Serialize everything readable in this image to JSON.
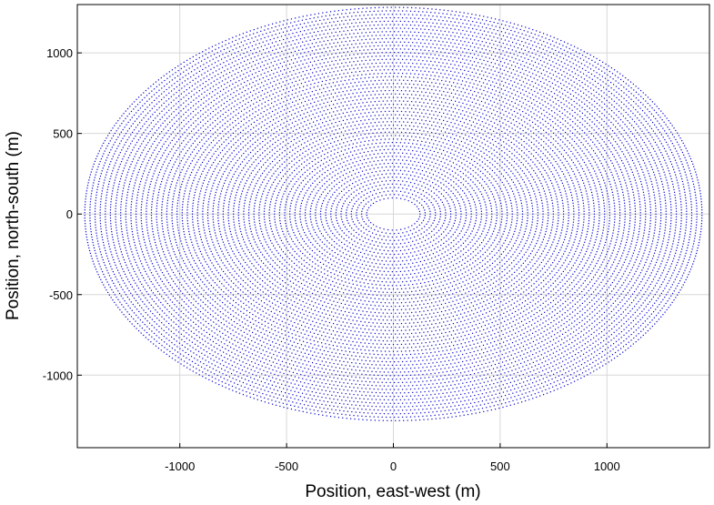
{
  "chart_data": {
    "type": "scatter",
    "title": "",
    "xlabel": "Position, east-west (m)",
    "ylabel": "Position, north-south (m)",
    "xlim": [
      -1480,
      1480
    ],
    "ylim": [
      -1450,
      1300
    ],
    "xticks": [
      -1000,
      -500,
      0,
      500,
      1000
    ],
    "yticks": [
      -1000,
      -500,
      0,
      500,
      1000
    ],
    "xtick_labels": [
      "-1000",
      "-500",
      "0",
      "500",
      "1000"
    ],
    "ytick_labels": [
      "-1000",
      "-500",
      "0",
      "500",
      "1000"
    ],
    "grid": true,
    "marker_color": "#0000cc",
    "field_shape": "ellipse",
    "field_center": [
      0,
      0
    ],
    "field_semi_axis_x": 1460,
    "field_semi_axis_y": 1300,
    "field_bottom_extent": -1450,
    "inner_hole_semi_axis_x": 125,
    "inner_hole_semi_axis_y": 100,
    "ring_spacing_x": 24,
    "ring_spacing_y": 21.5,
    "point_spacing_along_ring": 18
  }
}
